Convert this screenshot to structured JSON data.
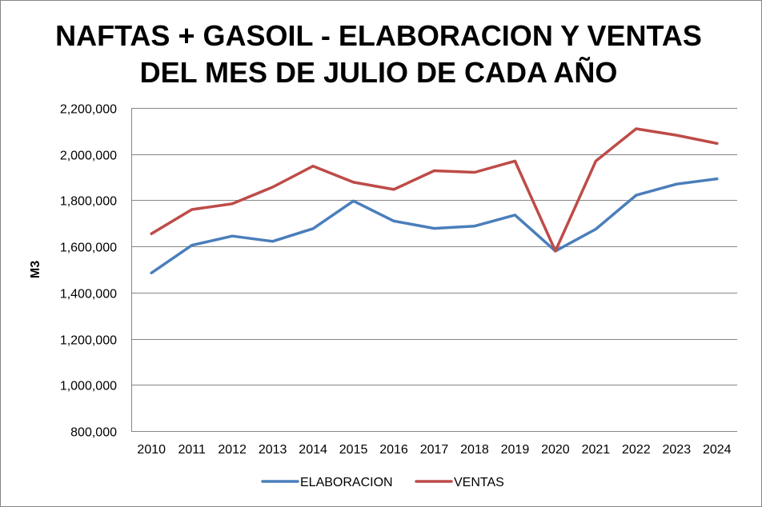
{
  "chart_data": {
    "type": "line",
    "title": [
      "NAFTAS + GASOIL - ELABORACION Y VENTAS",
      "DEL MES DE JULIO DE CADA AÑO"
    ],
    "xlabel": "",
    "ylabel": "M3",
    "ylim": [
      800000,
      2200000
    ],
    "ytick_values": [
      800000,
      1000000,
      1200000,
      1400000,
      1600000,
      1800000,
      2000000,
      2200000
    ],
    "ytick_labels": [
      "800,000",
      "1,000,000",
      "1,200,000",
      "1,400,000",
      "1,600,000",
      "1,800,000",
      "2,000,000",
      "2,200,000"
    ],
    "grid": true,
    "legend": "bottom-center",
    "categories": [
      "2010",
      "2011",
      "2012",
      "2013",
      "2014",
      "2015",
      "2016",
      "2017",
      "2018",
      "2019",
      "2020",
      "2021",
      "2022",
      "2023",
      "2024"
    ],
    "series": [
      {
        "name": "ELABORACION",
        "color": "#4a7ebb",
        "values": [
          1485000,
          1605000,
          1645000,
          1622000,
          1677000,
          1797000,
          1710000,
          1678000,
          1688000,
          1736000,
          1580000,
          1675000,
          1822000,
          1870000,
          1893000
        ]
      },
      {
        "name": "VENTAS",
        "color": "#be4b48",
        "values": [
          1655000,
          1760000,
          1785000,
          1857000,
          1948000,
          1878000,
          1847000,
          1928000,
          1921000,
          1970000,
          1580000,
          1970000,
          2110000,
          2082000,
          2046000
        ]
      }
    ]
  }
}
